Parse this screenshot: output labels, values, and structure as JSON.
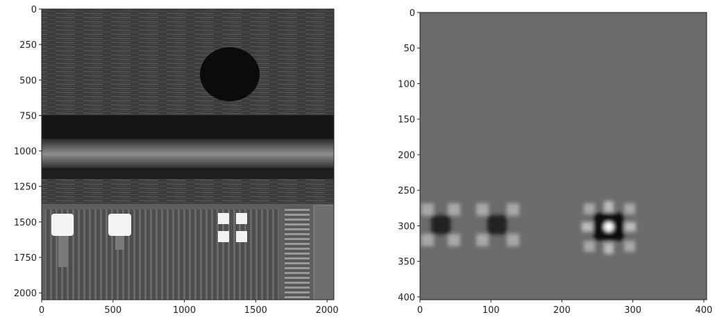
{
  "chart_data": [
    {
      "type": "image",
      "xlim": [
        0,
        2048
      ],
      "ylim": [
        0,
        2048
      ],
      "invert_y": true,
      "xticks": [
        0,
        500,
        1000,
        1500,
        2000
      ],
      "yticks": [
        0,
        250,
        500,
        750,
        1000,
        1250,
        1500,
        1750,
        2000
      ]
    },
    {
      "type": "image",
      "xlim": [
        0,
        404
      ],
      "ylim": [
        0,
        404
      ],
      "invert_y": true,
      "xticks": [
        0,
        100,
        200,
        300,
        400
      ],
      "yticks": [
        0,
        50,
        100,
        150,
        200,
        250,
        300,
        350,
        400
      ]
    }
  ]
}
